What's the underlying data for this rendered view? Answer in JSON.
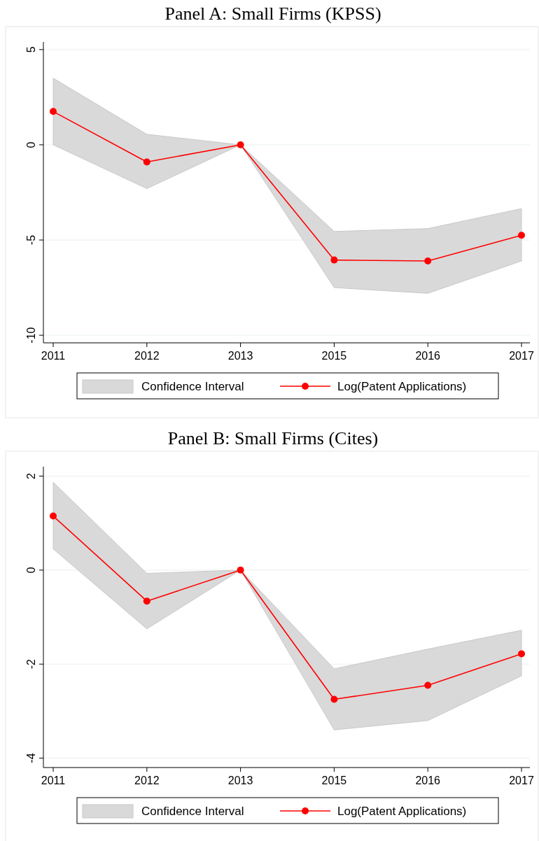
{
  "chart_data": [
    {
      "type": "line",
      "title": "Panel A: Small Firms (KPSS)",
      "categories": [
        "2011",
        "2012",
        "2013",
        "2015",
        "2016",
        "2017"
      ],
      "series": [
        {
          "name": "Log(Patent Applications)",
          "color": "#ff0000",
          "values": [
            1.75,
            -0.9,
            0,
            -6.05,
            -6.1,
            -4.75
          ],
          "lower": [
            0,
            -2.3,
            0,
            -7.5,
            -7.8,
            -6.1
          ],
          "upper": [
            3.5,
            0.55,
            0,
            -4.55,
            -4.4,
            -3.35
          ]
        }
      ],
      "annotations": [
        "Confidence Interval"
      ],
      "ylim": [
        -10.4,
        5.4
      ],
      "yticks": [
        5,
        0,
        -5,
        -10
      ],
      "grid": "y",
      "legend": "bottom",
      "marker": "circle"
    },
    {
      "type": "line",
      "title": "Panel B: Small Firms (Cites)",
      "categories": [
        "2011",
        "2012",
        "2013",
        "2015",
        "2016",
        "2017"
      ],
      "series": [
        {
          "name": "Log(Patent Applications)",
          "color": "#ff0000",
          "values": [
            1.15,
            -0.66,
            0,
            -2.75,
            -2.45,
            -1.78
          ],
          "lower": [
            0.45,
            -1.25,
            0,
            -3.4,
            -3.2,
            -2.25
          ],
          "upper": [
            1.87,
            -0.07,
            0,
            -2.1,
            -1.68,
            -1.28
          ]
        }
      ],
      "annotations": [
        "Confidence Interval"
      ],
      "ylim": [
        -4.2,
        2.2
      ],
      "yticks": [
        2,
        0,
        -2,
        -4
      ],
      "grid": "y",
      "legend": "bottom",
      "marker": "circle"
    }
  ]
}
